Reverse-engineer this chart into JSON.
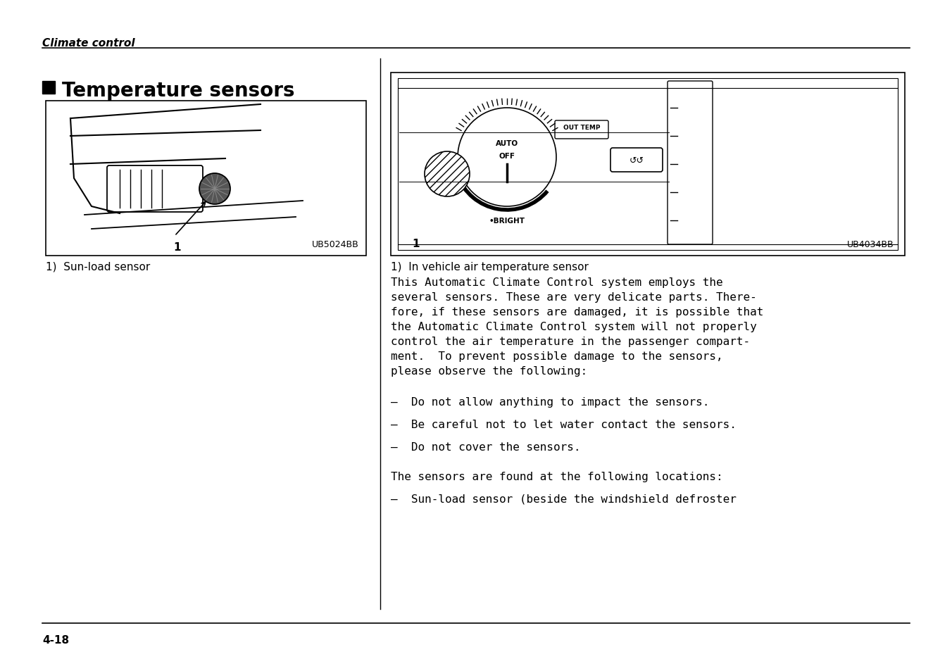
{
  "title": "Temperature sensors",
  "header": "Climate control",
  "footer": "4-18",
  "bg_color": "#ffffff",
  "left_image_label": "UB5024BB",
  "left_caption": "1)  Sun-load sensor",
  "right_image_label": "UB4034BB",
  "right_caption": "1)  In vehicle air temperature sensor",
  "body_text": [
    "This Automatic Climate Control system employs the several sensors. These are very delicate parts. Therefore, if these sensors are damaged, it is possible that the Automatic Climate Control system will not properly control the air temperature in the passenger compartment. To prevent possible damage to the sensors, please observe the following:",
    "–  Do not allow anything to impact the sensors.",
    "–  Be careful not to let water contact the sensors.",
    "–  Do not cover the sensors.",
    "",
    "The sensors are found at the following locations:",
    "–  Sun-load sensor (beside the windshield defroster"
  ]
}
